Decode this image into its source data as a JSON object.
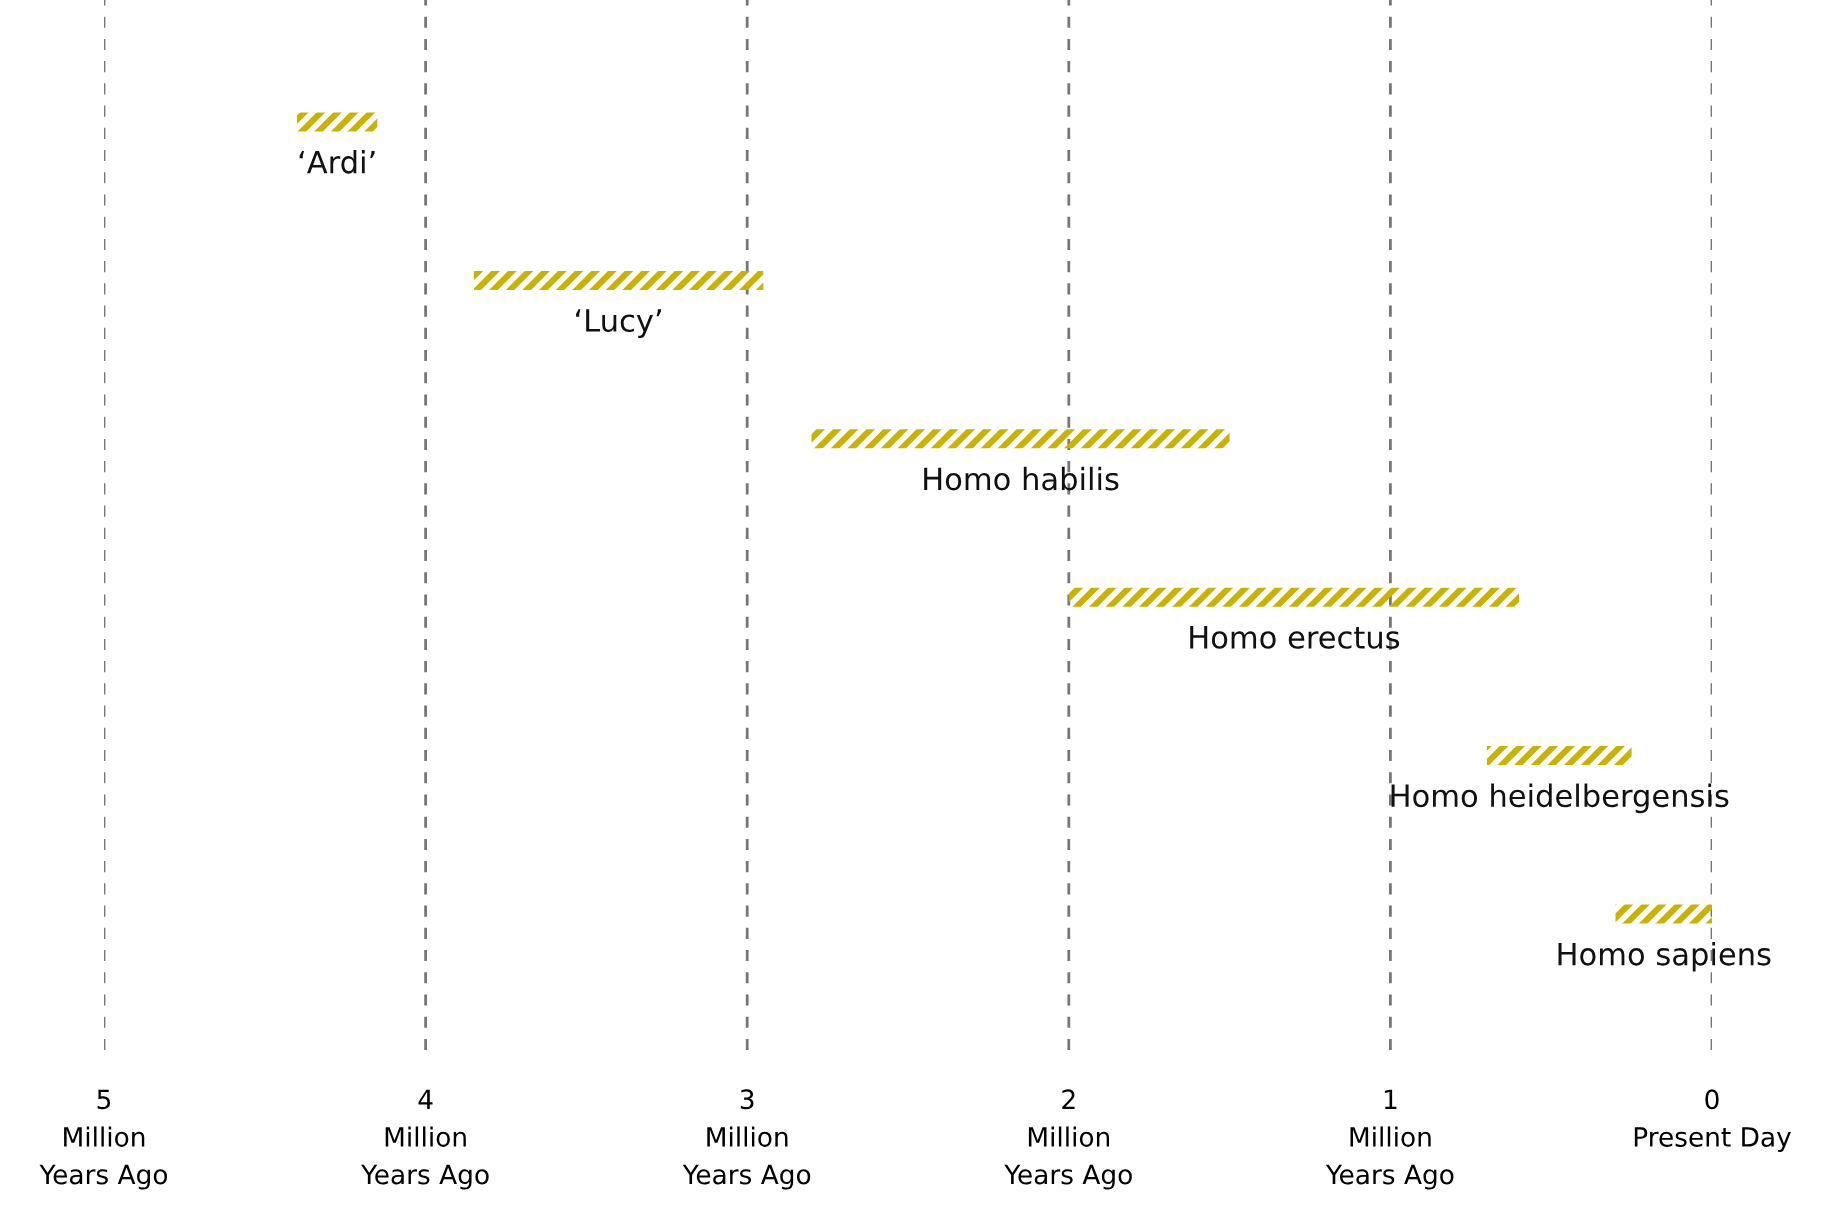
{
  "chart_data": {
    "type": "bar",
    "orientation": "horizontal",
    "categories": [
      "‘Ardi’",
      "‘Lucy’",
      "Homo habilis",
      "Homo erectus",
      "Homo heidelbergensis",
      "Homo sapiens"
    ],
    "base": [
      4.15,
      2.95,
      1.5,
      0.6,
      0.25,
      0
    ],
    "values": [
      0.25,
      0.9,
      1.3,
      1.4,
      0.45,
      0.3
    ],
    "color": "#c8b400",
    "xlim": [
      5,
      0
    ],
    "xticks": [
      {
        "value": 5,
        "label": "5\nMillion\nYears Ago"
      },
      {
        "value": 4,
        "label": "4\nMillion\nYears Ago"
      },
      {
        "value": 3,
        "label": "3\nMillion\nYears Ago"
      },
      {
        "value": 2,
        "label": "2\nMillion\nYears Ago"
      },
      {
        "value": 1,
        "label": "1\nMillion\nYears Ago"
      },
      {
        "value": 0,
        "label": "0\nPresent Day"
      }
    ],
    "grid": "x",
    "tick_labels": "x"
  }
}
